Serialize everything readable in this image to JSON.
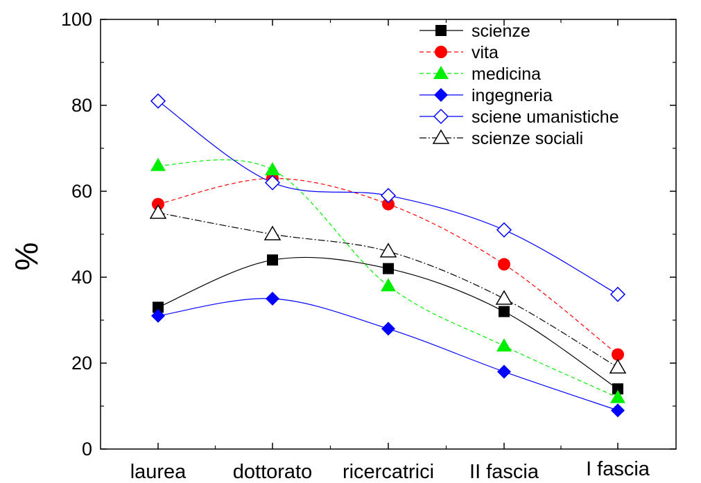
{
  "chart_data": {
    "type": "line",
    "title": "",
    "xlabel": "",
    "ylabel": "%",
    "categories": [
      "laurea",
      "dottorato",
      "ricercatrici",
      "II fascia",
      "I fascia"
    ],
    "ylim": [
      0,
      100
    ],
    "yticks": [
      0,
      20,
      40,
      60,
      80,
      100
    ],
    "grid": false,
    "legend_position": "top-right",
    "series": [
      {
        "name": "scienze",
        "values": [
          33,
          44,
          42,
          32,
          14
        ],
        "color": "#000000",
        "marker": "square-filled",
        "line": "solid"
      },
      {
        "name": "vita",
        "values": [
          57,
          63,
          57,
          43,
          22
        ],
        "color": "#ff0000",
        "marker": "circle-filled",
        "line": "dashed"
      },
      {
        "name": "medicina",
        "values": [
          66,
          65,
          38,
          24,
          12
        ],
        "color": "#00ee00",
        "marker": "triangle-filled",
        "line": "dashed"
      },
      {
        "name": "ingegneria",
        "values": [
          31,
          35,
          28,
          18,
          9
        ],
        "color": "#0000ff",
        "marker": "diamond-filled",
        "line": "solid"
      },
      {
        "name": "sciene umanistiche",
        "values": [
          81,
          62,
          59,
          51,
          36
        ],
        "color": "#0000ff",
        "marker": "diamond-open",
        "line": "solid"
      },
      {
        "name": "scienze sociali",
        "values": [
          55,
          50,
          46,
          35,
          19
        ],
        "color": "#000000",
        "marker": "triangle-open",
        "line": "dashdot"
      }
    ]
  }
}
